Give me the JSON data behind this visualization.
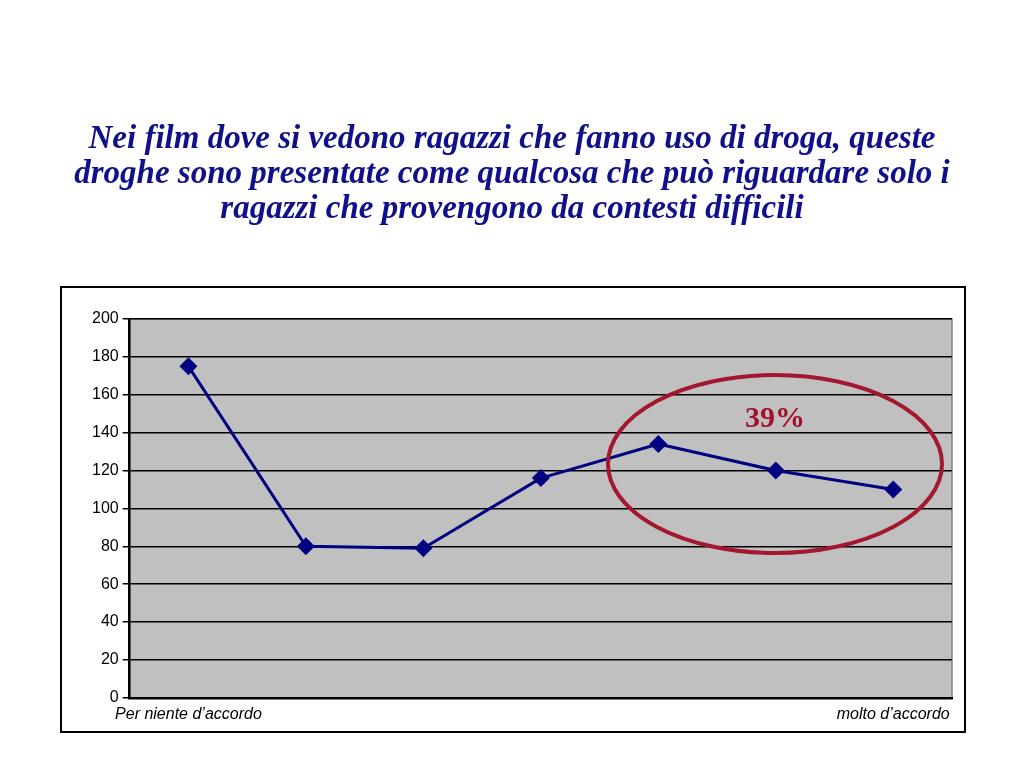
{
  "chart_data": {
    "type": "line",
    "title": "Nei film dove si vedono ragazzi che fanno uso di droga, queste droghe sono presentate come qualcosa che può riguardare solo i ragazzi che provengono da contesti difficili",
    "categories": [
      "Per niente d’accordo",
      null,
      null,
      null,
      null,
      null,
      "molto d’accordo"
    ],
    "series": [
      {
        "color": "#000080",
        "values": [
          175,
          80,
          79,
          116,
          134,
          120,
          110
        ]
      }
    ],
    "ylim": [
      0,
      200
    ],
    "yticks": [
      0,
      20,
      40,
      60,
      80,
      100,
      120,
      140,
      160,
      180,
      200
    ],
    "grid": "y",
    "marker": "diamond",
    "line_style": "solid",
    "annotations": [
      "39%"
    ]
  }
}
